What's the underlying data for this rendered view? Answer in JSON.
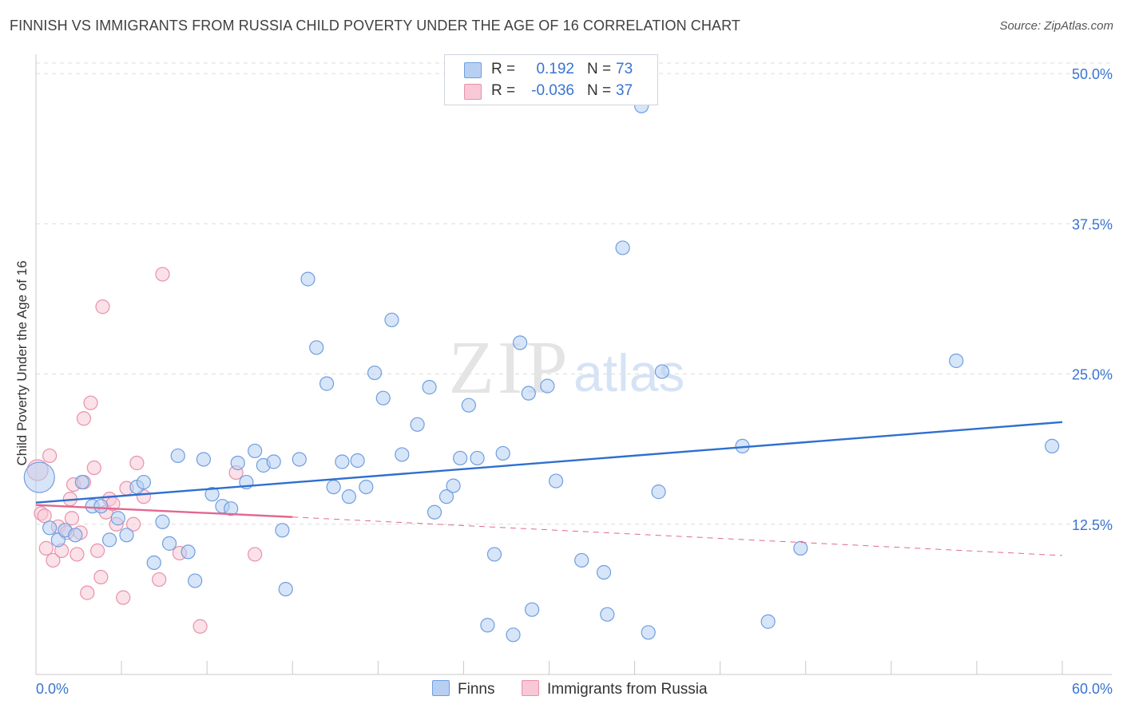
{
  "title": "FINNISH VS IMMIGRANTS FROM RUSSIA CHILD POVERTY UNDER THE AGE OF 16 CORRELATION CHART",
  "source": "Source: ZipAtlas.com",
  "watermark": {
    "zip": "ZIP",
    "atlas": "atlas"
  },
  "legend": {
    "r_label": "R =",
    "n_label": "N =",
    "finns": {
      "r": "0.192",
      "n": "73"
    },
    "russia": {
      "r": "-0.036",
      "n": "37"
    }
  },
  "colors": {
    "finns_fill": "#b7d0f2",
    "finns_stroke": "#6f9ee0",
    "finns_line": "#2f6fcf",
    "russia_fill": "#f8c8d6",
    "russia_stroke": "#e891ac",
    "russia_line": "#e2688f",
    "tick_label": "#3a74d0",
    "grid": "#dcdcdc"
  },
  "chart_data": {
    "type": "scatter",
    "title": "FINNISH VS IMMIGRANTS FROM RUSSIA CHILD POVERTY UNDER THE AGE OF 16 CORRELATION CHART",
    "xlabel": "",
    "ylabel": "Child Poverty Under the Age of 16",
    "xlim": [
      0,
      60
    ],
    "ylim": [
      0,
      52
    ],
    "x_tick_labels": [
      "0.0%",
      "60.0%"
    ],
    "y_ticks": [
      12.5,
      25.0,
      37.5,
      50.0
    ],
    "y_tick_labels": [
      "12.5%",
      "25.0%",
      "37.5%",
      "50.0%"
    ],
    "grid": true,
    "legend_position": "top-center",
    "series": [
      {
        "name": "Finns",
        "points": [
          [
            0.2,
            16.4
          ],
          [
            0.8,
            12.2
          ],
          [
            1.3,
            11.2
          ],
          [
            1.7,
            12.0
          ],
          [
            2.3,
            11.6
          ],
          [
            2.7,
            16.0
          ],
          [
            3.3,
            14.0
          ],
          [
            3.8,
            14.0
          ],
          [
            4.3,
            11.2
          ],
          [
            4.8,
            13.0
          ],
          [
            5.3,
            11.6
          ],
          [
            5.9,
            15.6
          ],
          [
            6.3,
            16.0
          ],
          [
            6.9,
            9.3
          ],
          [
            7.4,
            12.7
          ],
          [
            7.8,
            10.9
          ],
          [
            8.3,
            18.2
          ],
          [
            8.9,
            10.2
          ],
          [
            9.3,
            7.8
          ],
          [
            9.8,
            17.9
          ],
          [
            10.3,
            15.0
          ],
          [
            10.9,
            14.0
          ],
          [
            11.4,
            13.8
          ],
          [
            11.8,
            17.6
          ],
          [
            12.3,
            16.0
          ],
          [
            12.8,
            18.6
          ],
          [
            13.3,
            17.4
          ],
          [
            13.9,
            17.7
          ],
          [
            14.4,
            12.0
          ],
          [
            14.6,
            7.1
          ],
          [
            15.4,
            17.9
          ],
          [
            15.9,
            32.9
          ],
          [
            16.4,
            27.2
          ],
          [
            17.0,
            24.2
          ],
          [
            17.4,
            15.6
          ],
          [
            17.9,
            17.7
          ],
          [
            18.3,
            14.8
          ],
          [
            18.8,
            17.8
          ],
          [
            19.3,
            15.6
          ],
          [
            19.8,
            25.1
          ],
          [
            20.3,
            23.0
          ],
          [
            20.8,
            29.5
          ],
          [
            21.4,
            18.3
          ],
          [
            22.3,
            20.8
          ],
          [
            23.0,
            23.9
          ],
          [
            23.3,
            13.5
          ],
          [
            24.0,
            14.8
          ],
          [
            24.4,
            15.7
          ],
          [
            24.8,
            18.0
          ],
          [
            25.3,
            22.4
          ],
          [
            25.8,
            18.0
          ],
          [
            26.4,
            4.1
          ],
          [
            26.8,
            10.0
          ],
          [
            27.3,
            18.4
          ],
          [
            27.9,
            3.3
          ],
          [
            28.3,
            27.6
          ],
          [
            28.8,
            23.4
          ],
          [
            29.0,
            5.4
          ],
          [
            29.9,
            24.0
          ],
          [
            30.4,
            16.1
          ],
          [
            31.9,
            9.5
          ],
          [
            33.2,
            8.5
          ],
          [
            33.4,
            5.0
          ],
          [
            34.3,
            35.5
          ],
          [
            35.8,
            3.5
          ],
          [
            36.4,
            15.2
          ],
          [
            36.6,
            25.2
          ],
          [
            41.3,
            19.0
          ],
          [
            42.8,
            4.4
          ],
          [
            44.7,
            10.5
          ],
          [
            53.8,
            26.1
          ],
          [
            59.4,
            19.0
          ],
          [
            35.4,
            47.3
          ]
        ]
      },
      {
        "name": "Immigrants from Russia",
        "points": [
          [
            0.1,
            17.0
          ],
          [
            0.3,
            13.4
          ],
          [
            0.5,
            13.2
          ],
          [
            0.6,
            10.5
          ],
          [
            0.8,
            18.2
          ],
          [
            1.0,
            9.5
          ],
          [
            1.3,
            12.3
          ],
          [
            1.5,
            10.3
          ],
          [
            1.8,
            11.8
          ],
          [
            2.0,
            14.6
          ],
          [
            2.1,
            13.0
          ],
          [
            2.2,
            15.8
          ],
          [
            2.4,
            10.0
          ],
          [
            2.6,
            11.8
          ],
          [
            2.8,
            16.0
          ],
          [
            3.0,
            6.8
          ],
          [
            3.2,
            22.6
          ],
          [
            3.4,
            17.2
          ],
          [
            3.6,
            10.3
          ],
          [
            3.8,
            8.1
          ],
          [
            3.9,
            30.6
          ],
          [
            4.1,
            13.5
          ],
          [
            4.3,
            14.6
          ],
          [
            4.5,
            14.2
          ],
          [
            4.7,
            12.5
          ],
          [
            5.1,
            6.4
          ],
          [
            5.3,
            15.5
          ],
          [
            5.7,
            12.5
          ],
          [
            5.9,
            17.6
          ],
          [
            6.3,
            14.8
          ],
          [
            7.2,
            7.9
          ],
          [
            7.4,
            33.3
          ],
          [
            8.4,
            10.1
          ],
          [
            9.6,
            4.0
          ],
          [
            11.7,
            16.8
          ],
          [
            12.8,
            10.0
          ],
          [
            2.8,
            21.3
          ]
        ]
      }
    ],
    "trendlines": [
      {
        "series": "Finns",
        "x": [
          0,
          60
        ],
        "y": [
          14.3,
          21.0
        ],
        "style": "solid"
      },
      {
        "series": "Immigrants from Russia",
        "x": [
          0,
          15
        ],
        "y": [
          14.1,
          13.1
        ],
        "style": "solid"
      },
      {
        "series": "Immigrants from Russia",
        "x": [
          15,
          60
        ],
        "y": [
          13.1,
          9.9
        ],
        "style": "dashed"
      }
    ]
  }
}
